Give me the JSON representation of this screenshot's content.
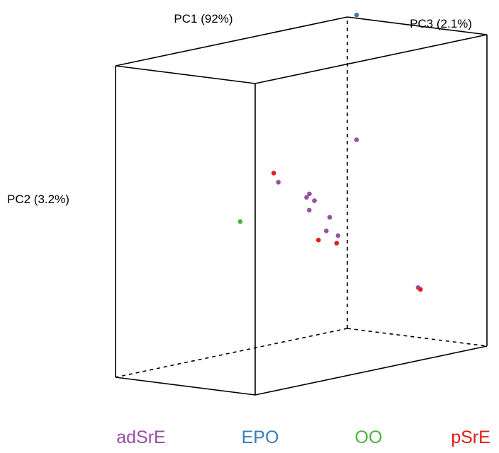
{
  "chart_data": {
    "type": "scatter",
    "title": "",
    "projection": "3d",
    "axes": {
      "x": {
        "label": "PC1 (92%)"
      },
      "y": {
        "label": "PC2 (3.2%)"
      },
      "z": {
        "label": "PC3 (2.1%)"
      }
    },
    "grid": false,
    "legend_position": "bottom",
    "series": [
      {
        "name": "adSrE",
        "color": "#984EA3",
        "points": [
          [
            0.13,
            0.66,
            0.05
          ],
          [
            0.27,
            0.6,
            0.06
          ],
          [
            0.3,
            0.58,
            0.13
          ],
          [
            0.31,
            0.57,
            0.09
          ],
          [
            0.4,
            0.5,
            0.13
          ],
          [
            0.6,
            0.71,
            0.27
          ],
          [
            0.42,
            0.51,
            0.31
          ],
          [
            0.46,
            0.43,
            0.17
          ],
          [
            0.62,
            0.4,
            0.52
          ],
          [
            0.92,
            0.18,
            0.36
          ]
        ]
      },
      {
        "name": "EPO",
        "color": "#377EB8",
        "points": [
          [
            1.04,
            1.0,
            1.0
          ]
        ]
      },
      {
        "name": "OO",
        "color": "#4DAF4A",
        "points": [
          [
            0.52,
            0.42,
            0.97
          ]
        ]
      },
      {
        "name": "pSrE",
        "color": "#E41A1C",
        "points": [
          [
            0.08,
            0.7,
            0.0
          ],
          [
            0.52,
            0.39,
            0.28
          ],
          [
            0.49,
            0.4,
            0.36
          ],
          [
            0.9,
            0.18,
            0.31
          ]
        ]
      }
    ]
  }
}
